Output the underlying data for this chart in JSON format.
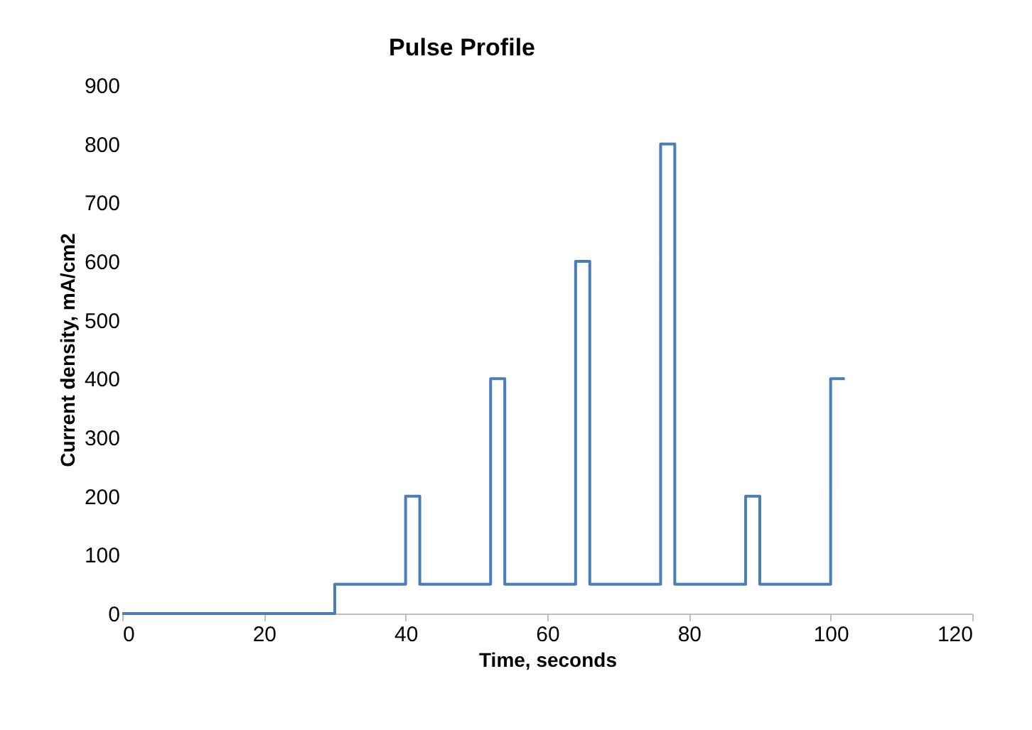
{
  "chart_data": {
    "type": "line",
    "title": "Pulse Profile",
    "xlabel": "Time, seconds",
    "ylabel": "Current density, mA/cm2",
    "x": [
      0,
      30,
      30,
      40,
      40,
      42,
      42,
      52,
      52,
      54,
      54,
      64,
      64,
      66,
      66,
      76,
      76,
      78,
      78,
      88,
      88,
      90,
      90,
      100,
      100,
      102
    ],
    "series": [
      {
        "color": "#4a7ebb",
        "values": [
          0,
          0,
          50,
          50,
          200,
          200,
          50,
          50,
          400,
          400,
          50,
          50,
          600,
          600,
          50,
          50,
          800,
          800,
          50,
          50,
          200,
          200,
          50,
          50,
          400,
          400
        ]
      }
    ],
    "xlim": [
      0,
      120
    ],
    "xticks": [
      0,
      20,
      40,
      60,
      80,
      100,
      120
    ],
    "ylim": [
      0,
      900
    ],
    "yticks": [
      0,
      100,
      200,
      300,
      400,
      500,
      600,
      700,
      800,
      900
    ],
    "grid": false,
    "marker": "none",
    "line_style": "solid"
  }
}
